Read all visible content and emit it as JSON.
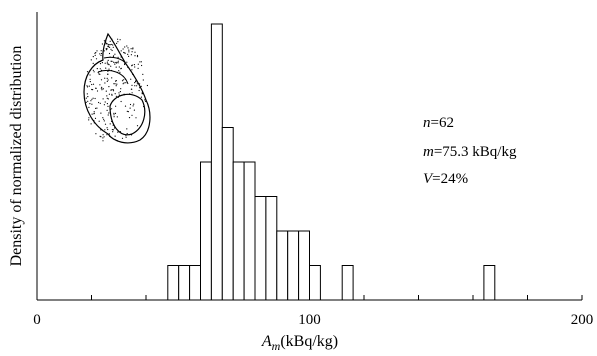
{
  "chart_data": {
    "type": "bar",
    "subtype": "histogram",
    "xlabel_main": "A",
    "xlabel_sub": "m",
    "xlabel_unit": "(kBq/kg)",
    "ylabel": "Density of normalized distribution",
    "xlim": [
      0,
      200
    ],
    "x_ticks": [
      0,
      100,
      200
    ],
    "x_minor_tick_step": 20,
    "bin_width": 4,
    "bins": [
      {
        "x0": 48,
        "x1": 52,
        "height": 1
      },
      {
        "x0": 52,
        "x1": 56,
        "height": 1
      },
      {
        "x0": 56,
        "x1": 60,
        "height": 1
      },
      {
        "x0": 60,
        "x1": 64,
        "height": 4
      },
      {
        "x0": 64,
        "x1": 68,
        "height": 8
      },
      {
        "x0": 68,
        "x1": 72,
        "height": 5
      },
      {
        "x0": 72,
        "x1": 76,
        "height": 4
      },
      {
        "x0": 76,
        "x1": 80,
        "height": 4
      },
      {
        "x0": 80,
        "x1": 84,
        "height": 3
      },
      {
        "x0": 84,
        "x1": 88,
        "height": 3
      },
      {
        "x0": 88,
        "x1": 92,
        "height": 2
      },
      {
        "x0": 92,
        "x1": 96,
        "height": 2
      },
      {
        "x0": 96,
        "x1": 100,
        "height": 2
      },
      {
        "x0": 100,
        "x1": 104,
        "height": 1
      },
      {
        "x0": 112,
        "x1": 116,
        "height": 1
      },
      {
        "x0": 164,
        "x1": 168,
        "height": 1
      }
    ],
    "annotations": [
      {
        "var": "n",
        "value": "=62"
      },
      {
        "var": "m",
        "value": "=75.3 kBq/kg"
      },
      {
        "var": "V",
        "value": "=24%"
      }
    ],
    "grid": false,
    "legend": "none",
    "illustration": "snail-shell",
    "colors": {
      "bar_fill": "#ffffff",
      "bar_stroke": "#000000",
      "axis": "#000000"
    }
  }
}
